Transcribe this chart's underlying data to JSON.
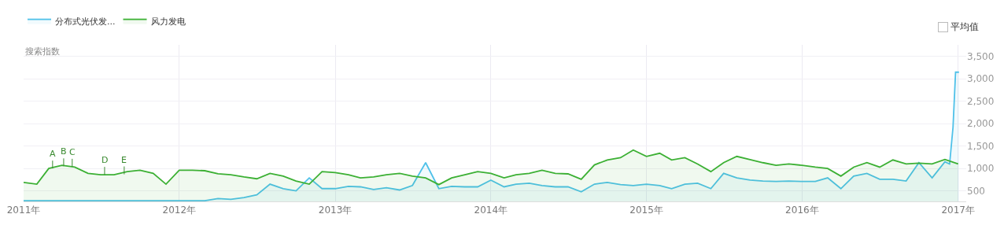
{
  "chart_data": {
    "type": "area",
    "ylabel": "搜索指数",
    "x": [
      "2011-01-01",
      "2011-02-01",
      "2011-03-01",
      "2011-04-01",
      "2011-05-01",
      "2011-06-01",
      "2011-07-01",
      "2011-08-01",
      "2011-09-01",
      "2011-10-01",
      "2011-11-01",
      "2011-12-01",
      "2012-01-01",
      "2012-02-01",
      "2012-03-01",
      "2012-04-01",
      "2012-05-01",
      "2012-06-01",
      "2012-07-01",
      "2012-08-01",
      "2012-09-01",
      "2012-10-01",
      "2012-11-01",
      "2012-12-01",
      "2013-01-01",
      "2013-02-01",
      "2013-03-01",
      "2013-04-01",
      "2013-05-01",
      "2013-06-01",
      "2013-07-01",
      "2013-08-01",
      "2013-09-01",
      "2013-10-01",
      "2013-11-01",
      "2013-12-01",
      "2014-01-01",
      "2014-02-01",
      "2014-03-01",
      "2014-04-01",
      "2014-05-01",
      "2014-06-01",
      "2014-07-01",
      "2014-08-01",
      "2014-09-01",
      "2014-10-01",
      "2014-11-01",
      "2014-12-01",
      "2015-01-01",
      "2015-02-01",
      "2015-03-01",
      "2015-04-01",
      "2015-05-01",
      "2015-06-01",
      "2015-07-01",
      "2015-08-01",
      "2015-09-01",
      "2015-10-01",
      "2015-11-01",
      "2015-12-01",
      "2016-01-01",
      "2016-02-01",
      "2016-03-01",
      "2016-04-01",
      "2016-05-01",
      "2016-06-01",
      "2016-07-01",
      "2016-08-01",
      "2016-09-01",
      "2016-10-01",
      "2016-11-01",
      "2016-12-01",
      "2017-01-01"
    ],
    "series": [
      {
        "name": "分布式光伏发...",
        "color": "#4fc1e9",
        "x": [
          "2011-01-01",
          "2011-03-01",
          "2011-06-01",
          "2011-09-01",
          "2011-12-01",
          "2012-03-01",
          "2012-04-01",
          "2012-05-01",
          "2012-06-01",
          "2012-07-01",
          "2012-08-01",
          "2012-09-01",
          "2012-10-01",
          "2012-11-01",
          "2012-12-01",
          "2013-01-01",
          "2013-02-01",
          "2013-03-01",
          "2013-04-01",
          "2013-05-01",
          "2013-06-01",
          "2013-07-01",
          "2013-08-01",
          "2013-09-01",
          "2013-10-01",
          "2013-11-01",
          "2013-12-01",
          "2014-01-01",
          "2014-02-01",
          "2014-03-01",
          "2014-04-01",
          "2014-05-01",
          "2014-06-01",
          "2014-07-01",
          "2014-08-01",
          "2014-09-01",
          "2014-10-01",
          "2014-11-01",
          "2014-12-01",
          "2015-01-01",
          "2015-02-01",
          "2015-03-01",
          "2015-04-01",
          "2015-05-01",
          "2015-06-01",
          "2015-07-01",
          "2015-08-01",
          "2015-09-01",
          "2015-10-01",
          "2015-11-01",
          "2015-12-01",
          "2016-01-01",
          "2016-02-01",
          "2016-03-01",
          "2016-04-01",
          "2016-05-01",
          "2016-06-01",
          "2016-07-01",
          "2016-08-01",
          "2016-09-01",
          "2016-10-01",
          "2016-11-01",
          "2016-12-01",
          "2016-12-12",
          "2016-12-20",
          "2016-12-26",
          "2017-01-03"
        ],
        "values": [
          280,
          280,
          280,
          280,
          280,
          280,
          330,
          310,
          350,
          410,
          650,
          550,
          500,
          790,
          550,
          550,
          600,
          590,
          530,
          570,
          520,
          620,
          1130,
          550,
          600,
          590,
          590,
          740,
          590,
          650,
          670,
          620,
          590,
          590,
          480,
          650,
          690,
          640,
          620,
          650,
          620,
          550,
          650,
          670,
          550,
          890,
          790,
          740,
          720,
          710,
          720,
          710,
          710,
          790,
          550,
          830,
          890,
          760,
          760,
          720,
          1130,
          790,
          1150,
          1100,
          1920,
          3150,
          3150
        ]
      },
      {
        "name": "风力发电",
        "color": "#3cb034",
        "values": [
          690,
          650,
          1000,
          1070,
          1030,
          890,
          860,
          860,
          930,
          960,
          890,
          650,
          960,
          960,
          950,
          880,
          860,
          810,
          770,
          890,
          830,
          720,
          650,
          930,
          910,
          860,
          790,
          810,
          860,
          890,
          830,
          790,
          640,
          790,
          860,
          930,
          890,
          790,
          860,
          890,
          960,
          890,
          880,
          760,
          1080,
          1190,
          1240,
          1410,
          1270,
          1340,
          1190,
          1240,
          1100,
          930,
          1130,
          1270,
          1200,
          1130,
          1070,
          1100,
          1070,
          1030,
          1000,
          830,
          1030,
          1130,
          1030,
          1190,
          1100,
          1120,
          1100,
          1200,
          1100
        ]
      }
    ],
    "xlim": [
      "2011-01-01",
      "2017-01-20"
    ],
    "xticks": [
      {
        "value": "2011-01-01",
        "label": "2011年"
      },
      {
        "value": "2012-01-01",
        "label": "2012年"
      },
      {
        "value": "2013-01-01",
        "label": "2013年"
      },
      {
        "value": "2014-01-01",
        "label": "2014年"
      },
      {
        "value": "2015-01-01",
        "label": "2015年"
      },
      {
        "value": "2016-01-01",
        "label": "2016年"
      },
      {
        "value": "2017-01-01",
        "label": "2017年"
      }
    ],
    "ylim": [
      265,
      3760
    ],
    "yticks": [
      {
        "value": 500,
        "label": "500"
      },
      {
        "value": 1000,
        "label": "1,000"
      },
      {
        "value": 1500,
        "label": "1,500"
      },
      {
        "value": 2000,
        "label": "2,000"
      },
      {
        "value": 2500,
        "label": "2,500"
      },
      {
        "value": 3000,
        "label": "3,000"
      },
      {
        "value": 3500,
        "label": "3,500"
      }
    ],
    "grid": true,
    "legend": "top left",
    "annotations": [
      "平均值",
      {
        "text": "A",
        "x": "2011-03-10",
        "y": 1000
      },
      {
        "text": "B",
        "x": "2011-04-05",
        "y": 1050
      },
      {
        "text": "C",
        "x": "2011-04-25",
        "y": 1040
      },
      {
        "text": "D",
        "x": "2011-07-10",
        "y": 860
      },
      {
        "text": "E",
        "x": "2011-08-25",
        "y": 870
      }
    ]
  }
}
